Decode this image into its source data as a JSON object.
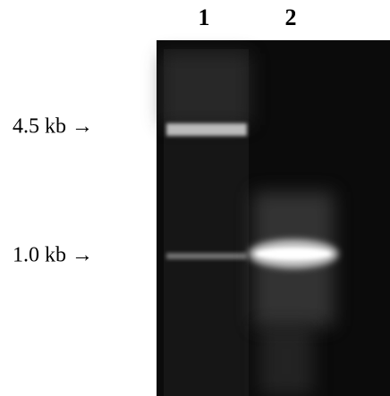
{
  "lanes": {
    "labels": [
      "1",
      "2"
    ]
  },
  "markers": {
    "labels": [
      "4.5 kb →",
      "1.0 kb →"
    ]
  }
}
